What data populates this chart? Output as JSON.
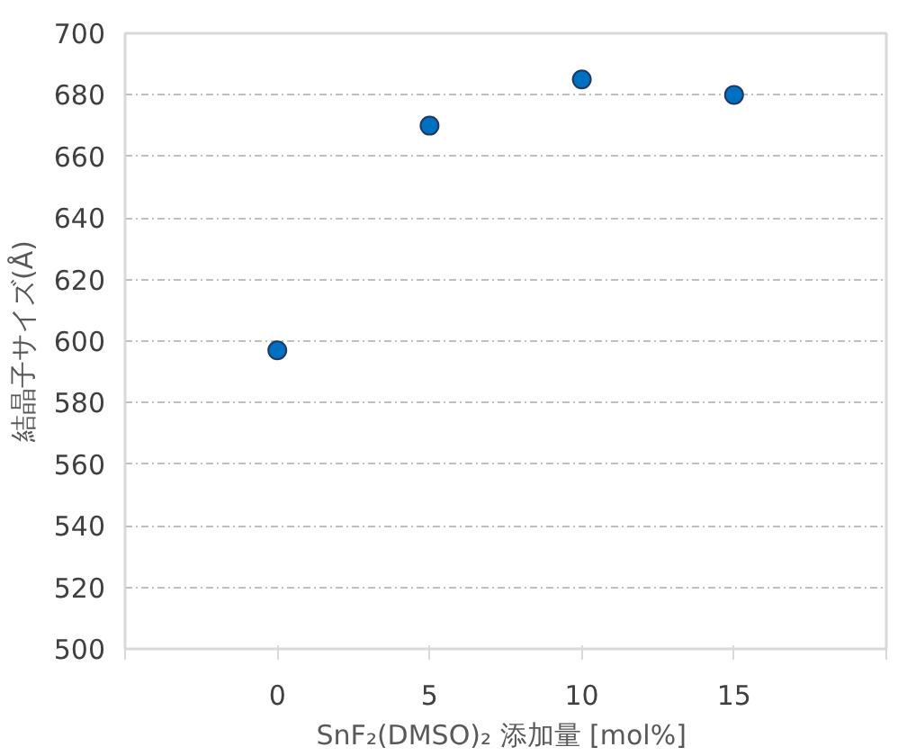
{
  "chart_data": {
    "type": "scatter",
    "xlabel": "SnF₂(DMSO)₂ 添加量  [mol%]",
    "ylabel": "結晶子サイズ(Å)",
    "x": [
      0,
      5,
      10,
      15
    ],
    "series": [
      {
        "color": "#0070c0",
        "values": [
          597,
          670,
          685,
          680
        ]
      }
    ],
    "xlim": [
      -5,
      20
    ],
    "xticks": [
      {
        "value": -5,
        "label": null
      },
      0,
      5,
      10,
      15,
      {
        "value": 20,
        "label": null
      }
    ],
    "ylim": [
      500,
      700
    ],
    "yticks": [
      500,
      520,
      540,
      560,
      580,
      600,
      620,
      640,
      660,
      680,
      700
    ],
    "grid": "y",
    "marker": "circle"
  }
}
